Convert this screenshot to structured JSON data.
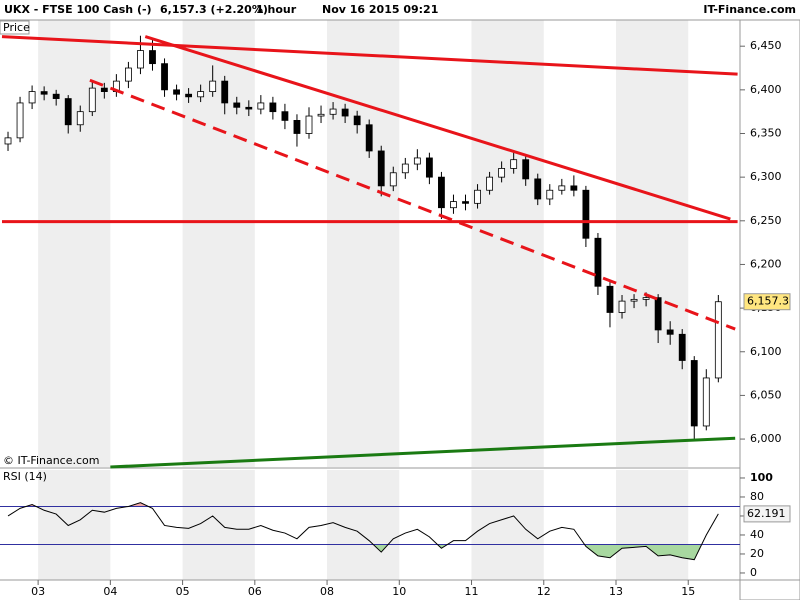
{
  "header": {
    "symbol": "UKX - FTSE 100 Cash (-)",
    "change": "6,157.3 (+2.20%)",
    "interval": "1 hour",
    "datetime": "Nov 16 2015 09:21",
    "brand": "IT-Finance.com"
  },
  "chart_data": [
    {
      "type": "candlestick",
      "label": "Price",
      "watermark": "© IT-Finance.com",
      "xlim": [
        -0.5,
        60.8
      ],
      "ylim": [
        5968,
        6480
      ],
      "yticks": [
        {
          "value": 6000,
          "label": "6,000"
        },
        {
          "value": 6050,
          "label": "6,050"
        },
        {
          "value": 6100,
          "label": "6,100"
        },
        {
          "value": 6150,
          "label": "6,150"
        },
        {
          "value": 6200,
          "label": "6,200"
        },
        {
          "value": 6250,
          "label": "6,250"
        },
        {
          "value": 6300,
          "label": "6,300"
        },
        {
          "value": 6350,
          "label": "6,350"
        },
        {
          "value": 6400,
          "label": "6,400"
        },
        {
          "value": 6450,
          "label": "6,450"
        }
      ],
      "grid": false,
      "up_color": "#ffffff",
      "down_color": "#000000",
      "open": [
        6338,
        6345,
        6385,
        6398,
        6395,
        6390,
        6360,
        6375,
        6402,
        6398,
        6410,
        6425,
        6445,
        6430,
        6400,
        6395,
        6392,
        6398,
        6410,
        6385,
        6380,
        6378,
        6385,
        6375,
        6365,
        6350,
        6370,
        6372,
        6378,
        6370,
        6360,
        6330,
        6290,
        6305,
        6315,
        6322,
        6300,
        6265,
        6272,
        6270,
        6285,
        6300,
        6310,
        6320,
        6298,
        6275,
        6285,
        6290,
        6285,
        6230,
        6175,
        6145,
        6158,
        6160,
        6162,
        6125,
        6120,
        6090,
        6015,
        6070
      ],
      "high": [
        6352,
        6392,
        6405,
        6404,
        6400,
        6394,
        6382,
        6410,
        6408,
        6418,
        6432,
        6462,
        6458,
        6436,
        6406,
        6402,
        6406,
        6428,
        6416,
        6392,
        6388,
        6394,
        6392,
        6384,
        6372,
        6380,
        6382,
        6386,
        6384,
        6376,
        6366,
        6336,
        6312,
        6322,
        6332,
        6328,
        6306,
        6280,
        6280,
        6292,
        6306,
        6318,
        6330,
        6326,
        6304,
        6292,
        6298,
        6302,
        6290,
        6236,
        6180,
        6165,
        6166,
        6168,
        6166,
        6135,
        6126,
        6095,
        6080,
        6165
      ],
      "low": [
        6330,
        6340,
        6378,
        6388,
        6382,
        6350,
        6352,
        6370,
        6390,
        6392,
        6402,
        6418,
        6422,
        6392,
        6388,
        6385,
        6386,
        6392,
        6372,
        6372,
        6370,
        6372,
        6366,
        6355,
        6335,
        6344,
        6362,
        6366,
        6362,
        6350,
        6322,
        6278,
        6284,
        6298,
        6308,
        6292,
        6252,
        6258,
        6262,
        6264,
        6280,
        6294,
        6304,
        6290,
        6268,
        6268,
        6280,
        6278,
        6220,
        6165,
        6128,
        6138,
        6150,
        6152,
        6110,
        6108,
        6080,
        6000,
        6010,
        6065
      ],
      "close": [
        6345,
        6385,
        6398,
        6395,
        6390,
        6360,
        6375,
        6402,
        6398,
        6410,
        6425,
        6445,
        6430,
        6400,
        6395,
        6392,
        6398,
        6410,
        6385,
        6380,
        6378,
        6385,
        6375,
        6365,
        6350,
        6370,
        6372,
        6378,
        6370,
        6360,
        6330,
        6290,
        6305,
        6315,
        6322,
        6300,
        6265,
        6272,
        6270,
        6285,
        6300,
        6310,
        6320,
        6298,
        6275,
        6285,
        6290,
        6285,
        6230,
        6175,
        6145,
        6158,
        6160,
        6162,
        6125,
        6120,
        6090,
        6015,
        6070,
        6157.3
      ],
      "last_value_label": "6,157.3",
      "trendlines": [
        {
          "x": [
            -0.5,
            60.6
          ],
          "y": [
            6461,
            6418
          ],
          "color": "#e8141a",
          "dash": false
        },
        {
          "x": [
            -0.5,
            60.6
          ],
          "y": [
            6249,
            6249
          ],
          "color": "#e8141a",
          "dash": false
        },
        {
          "x": [
            11.4,
            60.0
          ],
          "y": [
            6461,
            6252
          ],
          "color": "#e8141a",
          "dash": false
        },
        {
          "x": [
            6.8,
            60.4
          ],
          "y": [
            6411,
            6126
          ],
          "color": "#e8141a",
          "dash": true
        },
        {
          "x": [
            8.5,
            60.4
          ],
          "y": [
            5968,
            6001
          ],
          "color": "#1a7a12",
          "dash": false
        }
      ]
    },
    {
      "type": "line",
      "label": "RSI (14)",
      "color": "#000000",
      "xlim": [
        -0.5,
        60.8
      ],
      "ylim": [
        -7.4,
        108.4
      ],
      "yticks": [
        0,
        20,
        40,
        60,
        80,
        100
      ],
      "levels": [
        70,
        30
      ],
      "level_color": "#3030a0",
      "oversold_color": "#a8d8a0",
      "overbought_color": "#f0a8a8",
      "xticks": [
        {
          "value": 2.5,
          "label": "03"
        },
        {
          "value": 8.5,
          "label": "04"
        },
        {
          "value": 14.5,
          "label": "05"
        },
        {
          "value": 20.5,
          "label": "06"
        },
        {
          "value": 26.5,
          "label": "08"
        },
        {
          "value": 32.5,
          "label": "10"
        },
        {
          "value": 38.5,
          "label": "11"
        },
        {
          "value": 44.5,
          "label": "12"
        },
        {
          "value": 50.5,
          "label": "13"
        },
        {
          "value": 56.5,
          "label": "15"
        }
      ],
      "values": [
        60,
        68,
        72,
        66,
        62,
        50,
        56,
        66,
        64,
        68,
        70,
        74,
        68,
        50,
        48,
        47,
        52,
        60,
        48,
        46,
        46,
        50,
        45,
        42,
        36,
        48,
        50,
        53,
        48,
        44,
        34,
        22,
        36,
        42,
        46,
        38,
        26,
        34,
        34,
        44,
        52,
        56,
        60,
        46,
        36,
        44,
        48,
        46,
        28,
        18,
        16,
        26,
        27,
        28,
        18,
        19,
        16,
        14,
        40,
        62.191
      ]
    }
  ]
}
